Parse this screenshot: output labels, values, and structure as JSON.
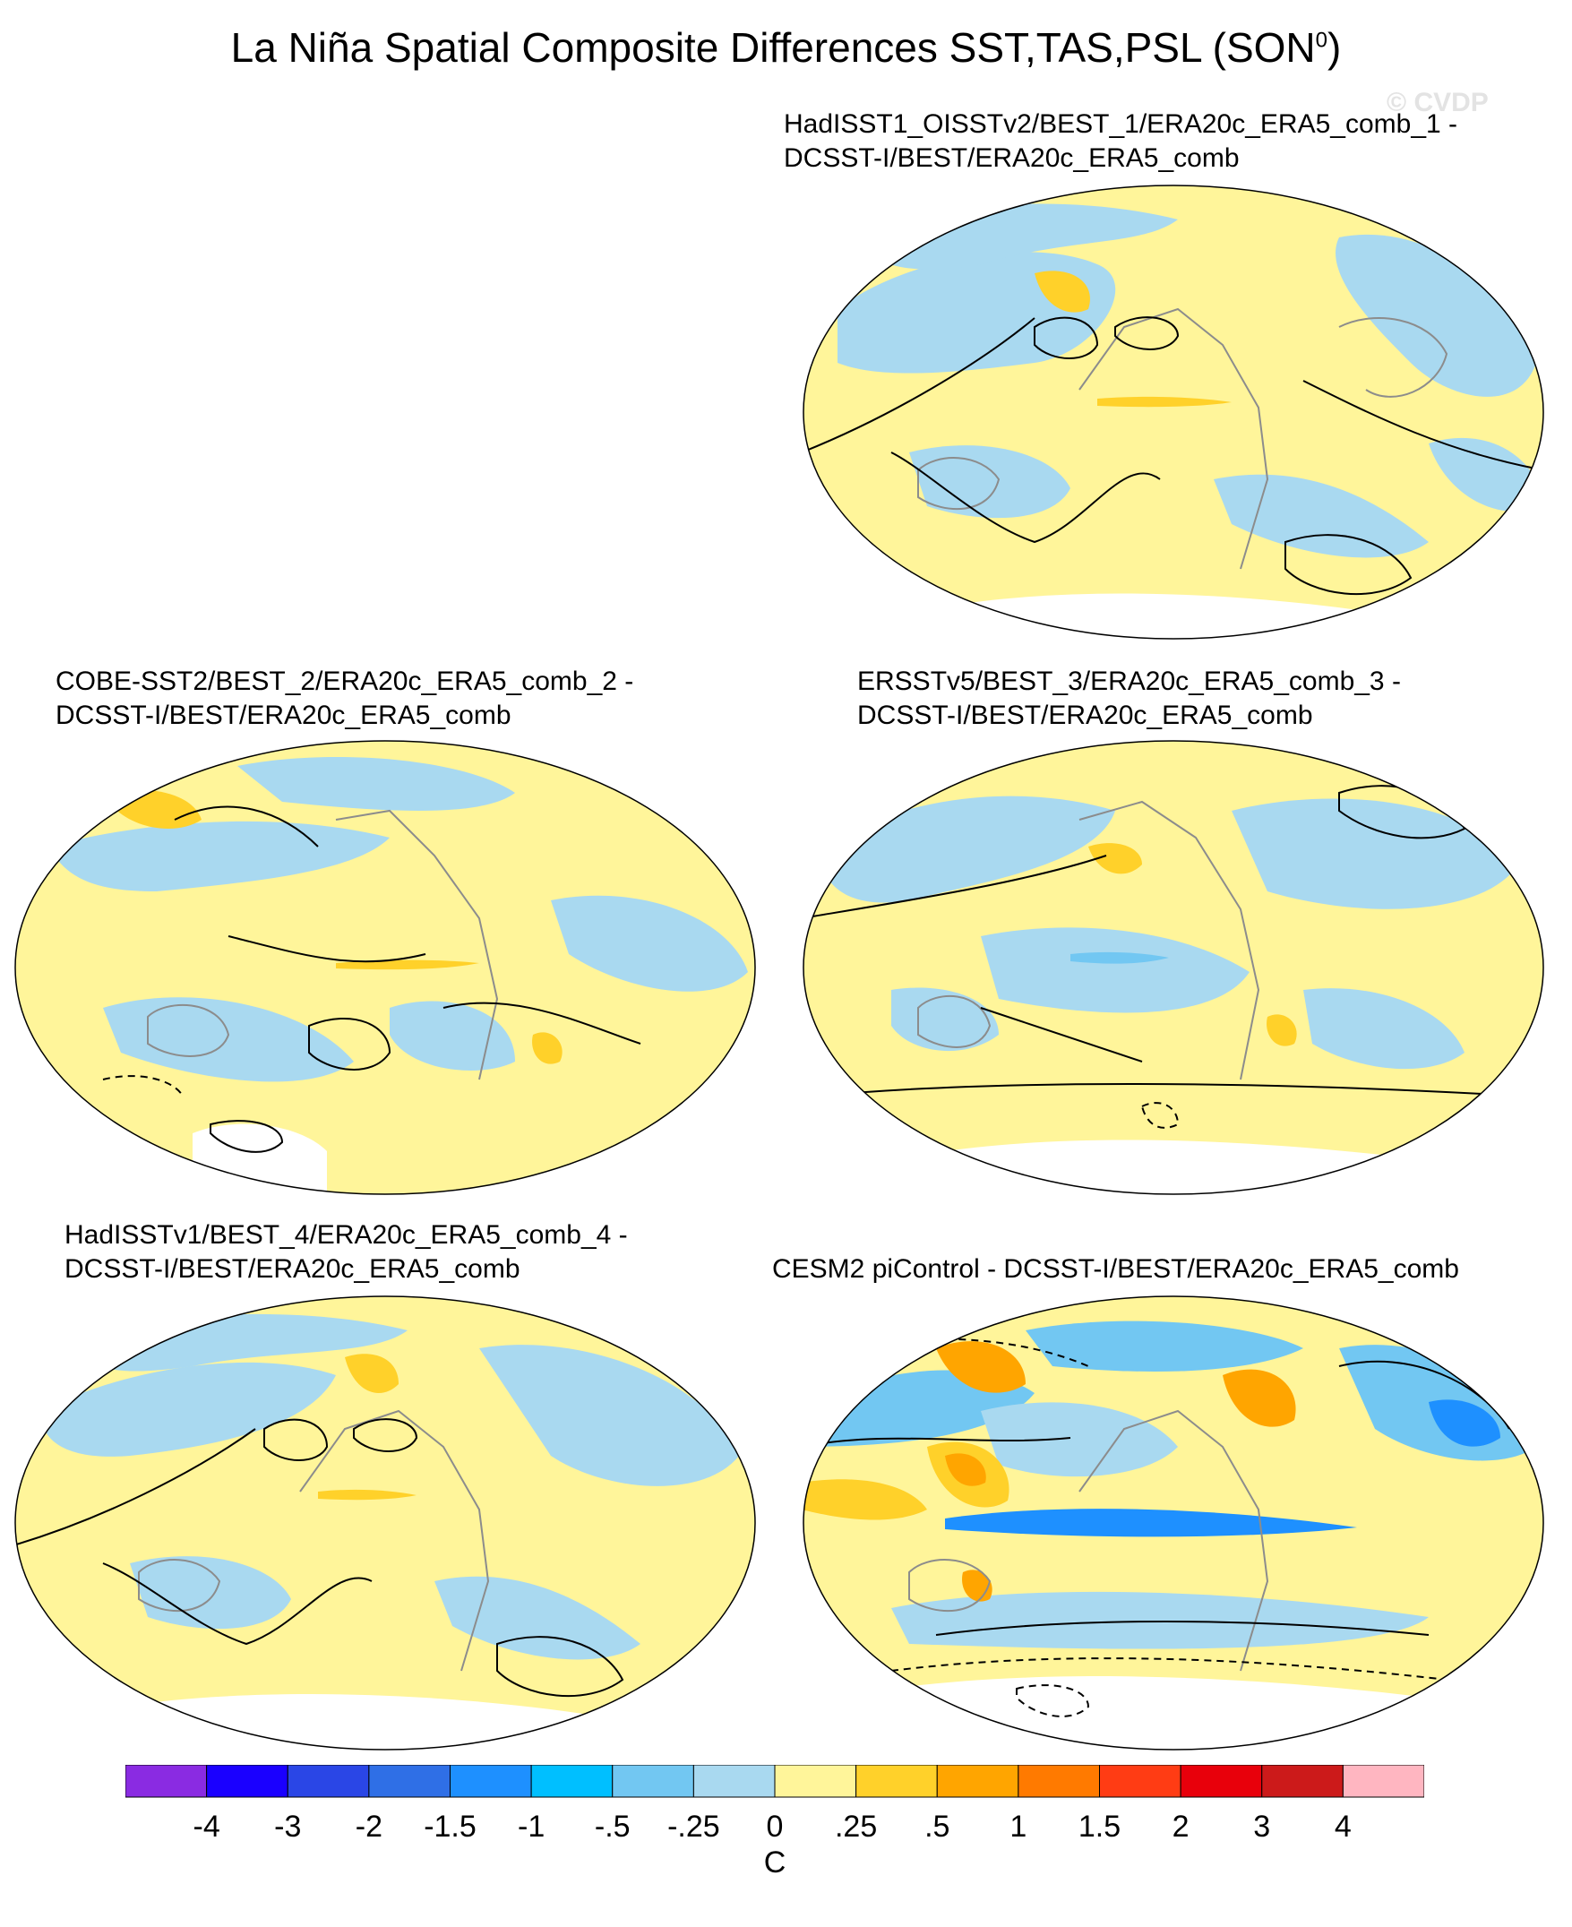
{
  "title": {
    "main": "La Niña Spatial Composite Differences SST,TAS,PSL (SON",
    "sup": "0",
    "close": ")"
  },
  "watermark": "© CVDP",
  "panels": [
    {
      "line1": "HadISST1_OISSTv2/BEST_1/ERA20c_ERA5_comb_1 -",
      "line2": "DCSST-I/BEST/ERA20c_ERA5_comb"
    },
    {
      "line1": "COBE-SST2/BEST_2/ERA20c_ERA5_comb_2 -",
      "line2": "DCSST-I/BEST/ERA20c_ERA5_comb"
    },
    {
      "line1": "ERSSTv5/BEST_3/ERA20c_ERA5_comb_3 -",
      "line2": "DCSST-I/BEST/ERA20c_ERA5_comb"
    },
    {
      "line1": "HadISSTv1/BEST_4/ERA20c_ERA5_comb_4 -",
      "line2": "DCSST-I/BEST/ERA20c_ERA5_comb"
    },
    {
      "line1": "CESM2 piControl - DCSST-I/BEST/ERA20c_ERA5_comb",
      "line2": ""
    }
  ],
  "colorbar": {
    "unit": "C",
    "labels": [
      "-4",
      "-3",
      "-2",
      "-1.5",
      "-1",
      "-.5",
      "-.25",
      "0",
      ".25",
      ".5",
      "1",
      "1.5",
      "2",
      "3",
      "4"
    ],
    "colors": [
      "#8a2be2",
      "#1a00ff",
      "#2a46e6",
      "#2f6fe6",
      "#1e90ff",
      "#00bfff",
      "#72c7f2",
      "#a9d9f0",
      "#fff59a",
      "#ffd12a",
      "#ffa500",
      "#ff7a00",
      "#ff3c14",
      "#e8000b",
      "#cc1a1a",
      "#ffb6c1"
    ]
  },
  "colors": {
    "land_outline": "#8c8c8c",
    "contour": "#000000",
    "neutral_warm": "#fff59a",
    "neutral_cool": "#a9d9f0"
  }
}
